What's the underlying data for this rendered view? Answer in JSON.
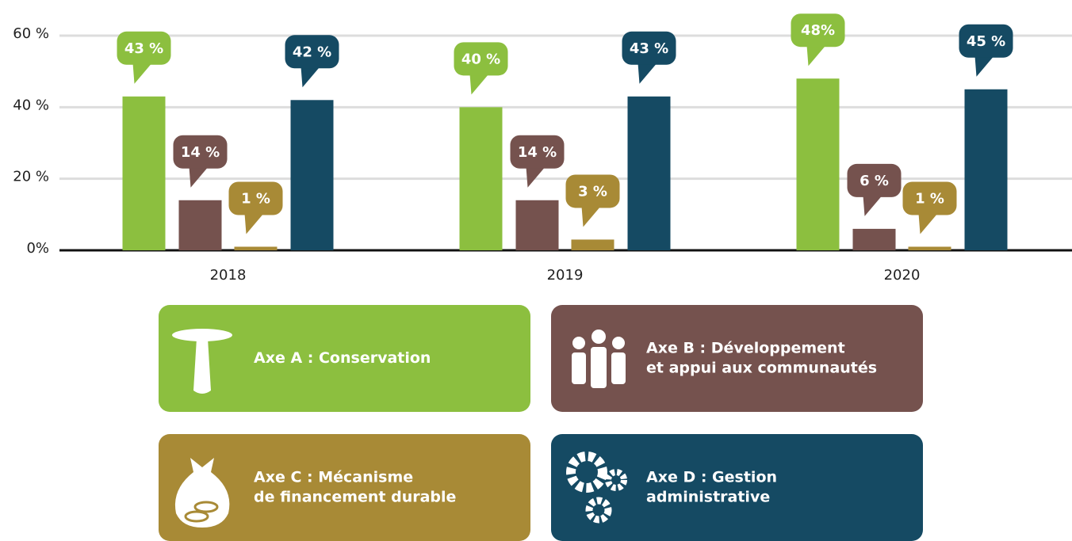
{
  "chart_data": {
    "type": "bar",
    "categories": [
      "2018",
      "2019",
      "2020"
    ],
    "series": [
      {
        "name": "Axe A : Conservation",
        "color": "#8cbf3f",
        "values": [
          43,
          40,
          48
        ],
        "value_labels": [
          "43 %",
          "40 %",
          "48%"
        ]
      },
      {
        "name": "Axe B : Développement\net appui aux communautés",
        "color": "#75524e",
        "values": [
          14,
          14,
          6
        ],
        "value_labels": [
          "14 %",
          "14 %",
          "6 %"
        ]
      },
      {
        "name": "Axe C : Mécanisme\nde financement durable",
        "color": "#a88a36",
        "values": [
          1,
          3,
          1
        ],
        "value_labels": [
          "1 %",
          "3 %",
          "1 %"
        ]
      },
      {
        "name": "Axe D : Gestion\nadministrative",
        "color": "#154a63",
        "values": [
          42,
          43,
          45
        ],
        "value_labels": [
          "42 %",
          "43 %",
          "45 %"
        ]
      }
    ],
    "ylim": [
      0,
      60
    ],
    "yticks": [
      {
        "value": 0,
        "label": "0%"
      },
      {
        "value": 20,
        "label": "20 %"
      },
      {
        "value": 40,
        "label": "40 %"
      },
      {
        "value": 60,
        "label": "60 %"
      }
    ],
    "grid": true
  }
}
